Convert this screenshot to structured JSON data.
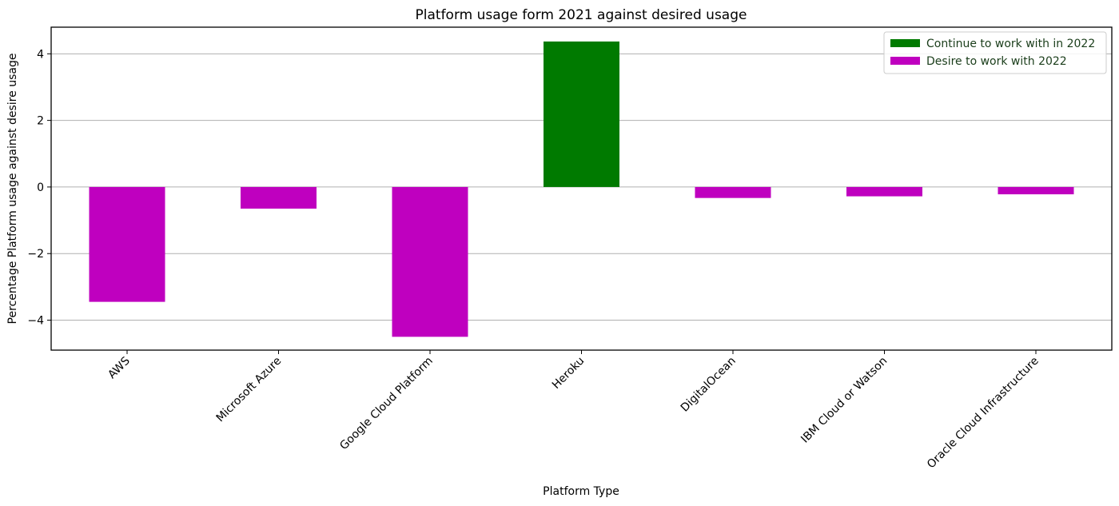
{
  "chart_data": {
    "type": "bar",
    "title": "Platform usage form 2021 against desired usage",
    "xlabel": "Platform Type",
    "ylabel": "Percentage Platform usage against desire usage",
    "categories": [
      "AWS",
      "Microsoft Azure",
      "Google Cloud Platform",
      "Heroku",
      "DigitalOcean",
      "IBM Cloud or Watson",
      "Oracle Cloud Infrastructure"
    ],
    "values": [
      -3.45,
      -0.65,
      -4.5,
      4.37,
      -0.33,
      -0.28,
      -0.22
    ],
    "ylim": [
      -4.9,
      4.8
    ],
    "yticks": [
      -4,
      -2,
      0,
      2,
      4
    ],
    "grid": "horizontal",
    "legend": {
      "placement": "top-right",
      "entries": [
        {
          "label": "Continue to work with in 2022",
          "color": "#007a00"
        },
        {
          "label": "Desire to work with 2022",
          "color": "#bf00bf"
        }
      ]
    },
    "colors": {
      "positive": "#007a00",
      "negative": "#bf00bf"
    }
  }
}
